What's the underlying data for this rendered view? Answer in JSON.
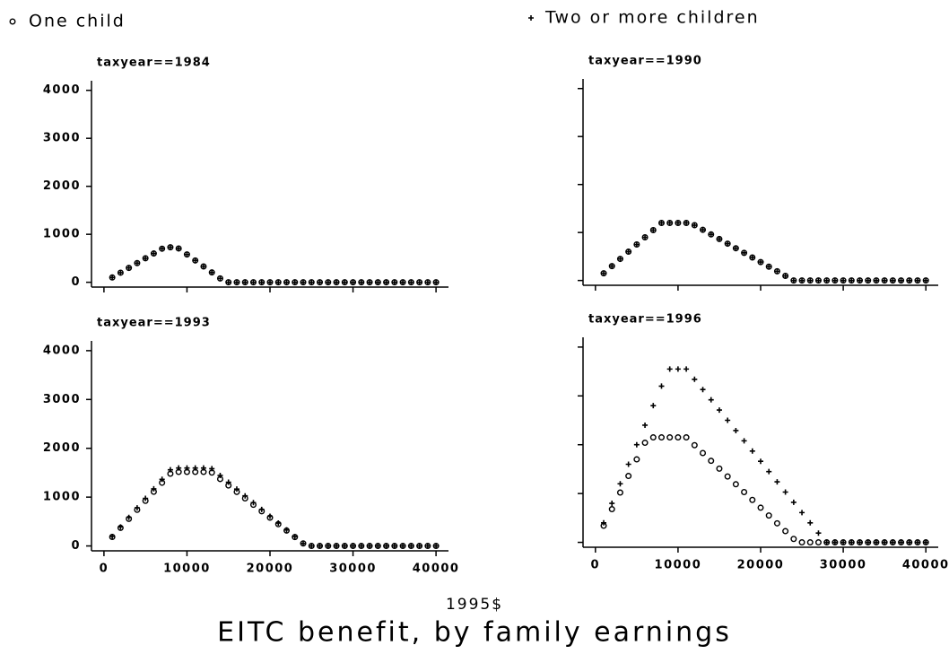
{
  "title": "EITC benefit, by family earnings",
  "xlabel": "1995$",
  "chart_data": [
    {
      "type": "scatter",
      "title": "taxyear==1984",
      "x": [
        1000,
        2000,
        3000,
        4000,
        5000,
        6000,
        7000,
        8000,
        9000,
        10000,
        11000,
        12000,
        13000,
        14000,
        15000,
        16000,
        17000,
        18000,
        19000,
        20000,
        21000,
        22000,
        23000,
        24000,
        25000,
        26000,
        27000,
        28000,
        29000,
        30000,
        31000,
        32000,
        33000,
        34000,
        35000,
        36000,
        37000,
        38000,
        39000,
        40000
      ],
      "series": [
        {
          "name": "One child",
          "marker": "circle",
          "color": "#000000",
          "values": [
            100,
            200,
            300,
            400,
            500,
            600,
            700,
            730,
            705,
            580,
            455,
            330,
            205,
            80,
            0,
            0,
            0,
            0,
            0,
            0,
            0,
            0,
            0,
            0,
            0,
            0,
            0,
            0,
            0,
            0,
            0,
            0,
            0,
            0,
            0,
            0,
            0,
            0,
            0,
            0
          ]
        },
        {
          "name": "Two or more children",
          "marker": "plus",
          "color": "#000000",
          "values": [
            100,
            200,
            300,
            400,
            500,
            600,
            700,
            730,
            705,
            580,
            455,
            330,
            205,
            80,
            0,
            0,
            0,
            0,
            0,
            0,
            0,
            0,
            0,
            0,
            0,
            0,
            0,
            0,
            0,
            0,
            0,
            0,
            0,
            0,
            0,
            0,
            0,
            0,
            0,
            0
          ]
        }
      ],
      "xlim": [
        -1500,
        41500
      ],
      "ylim": [
        -100,
        4200
      ],
      "xticks": [
        0,
        10000,
        20000,
        30000,
        40000
      ],
      "yticks": [
        0,
        1000,
        2000,
        3000,
        4000
      ]
    },
    {
      "type": "scatter",
      "title": "taxyear==1990",
      "x": [
        1000,
        2000,
        3000,
        4000,
        5000,
        6000,
        7000,
        8000,
        9000,
        10000,
        11000,
        12000,
        13000,
        14000,
        15000,
        16000,
        17000,
        18000,
        19000,
        20000,
        21000,
        22000,
        23000,
        24000,
        25000,
        26000,
        27000,
        28000,
        29000,
        30000,
        31000,
        32000,
        33000,
        34000,
        35000,
        36000,
        37000,
        38000,
        39000,
        40000
      ],
      "series": [
        {
          "name": "One child",
          "marker": "circle",
          "color": "#000000",
          "values": [
            150,
            300,
            450,
            600,
            750,
            900,
            1050,
            1200,
            1200,
            1200,
            1200,
            1152,
            1056,
            960,
            864,
            768,
            672,
            576,
            480,
            384,
            288,
            192,
            96,
            0,
            0,
            0,
            0,
            0,
            0,
            0,
            0,
            0,
            0,
            0,
            0,
            0,
            0,
            0,
            0,
            0
          ]
        },
        {
          "name": "Two or more children",
          "marker": "plus",
          "color": "#000000",
          "values": [
            150,
            300,
            450,
            600,
            750,
            900,
            1050,
            1200,
            1200,
            1200,
            1200,
            1152,
            1056,
            960,
            864,
            768,
            672,
            576,
            480,
            384,
            288,
            192,
            96,
            0,
            0,
            0,
            0,
            0,
            0,
            0,
            0,
            0,
            0,
            0,
            0,
            0,
            0,
            0,
            0,
            0
          ]
        }
      ],
      "xlim": [
        -1500,
        41500
      ],
      "ylim": [
        -100,
        4200
      ],
      "xticks": [
        0,
        10000,
        20000,
        30000,
        40000
      ],
      "yticks": [
        0,
        1000,
        2000,
        3000,
        4000
      ]
    },
    {
      "type": "scatter",
      "title": "taxyear==1993",
      "x": [
        1000,
        2000,
        3000,
        4000,
        5000,
        6000,
        7000,
        8000,
        9000,
        10000,
        11000,
        12000,
        13000,
        14000,
        15000,
        16000,
        17000,
        18000,
        19000,
        20000,
        21000,
        22000,
        23000,
        24000,
        25000,
        26000,
        27000,
        28000,
        29000,
        30000,
        31000,
        32000,
        33000,
        34000,
        35000,
        36000,
        37000,
        38000,
        39000,
        40000
      ],
      "series": [
        {
          "name": "One child",
          "marker": "circle",
          "color": "#000000",
          "values": [
            185,
            370,
            555,
            740,
            925,
            1110,
            1295,
            1480,
            1516,
            1516,
            1516,
            1516,
            1503,
            1371,
            1239,
            1107,
            975,
            843,
            711,
            579,
            447,
            315,
            183,
            51,
            0,
            0,
            0,
            0,
            0,
            0,
            0,
            0,
            0,
            0,
            0,
            0,
            0,
            0,
            0,
            0
          ]
        },
        {
          "name": "Two or more children",
          "marker": "plus",
          "color": "#000000",
          "values": [
            195,
            390,
            585,
            780,
            975,
            1170,
            1365,
            1560,
            1597,
            1597,
            1597,
            1597,
            1583,
            1444,
            1305,
            1165,
            1026,
            887,
            747,
            608,
            469,
            329,
            190,
            51,
            0,
            0,
            0,
            0,
            0,
            0,
            0,
            0,
            0,
            0,
            0,
            0,
            0,
            0,
            0,
            0
          ]
        }
      ],
      "xlim": [
        -1500,
        41500
      ],
      "ylim": [
        -100,
        4200
      ],
      "xticks": [
        0,
        10000,
        20000,
        30000,
        40000
      ],
      "yticks": [
        0,
        1000,
        2000,
        3000,
        4000
      ]
    },
    {
      "type": "scatter",
      "title": "taxyear==1996",
      "x": [
        1000,
        2000,
        3000,
        4000,
        5000,
        6000,
        7000,
        8000,
        9000,
        10000,
        11000,
        12000,
        13000,
        14000,
        15000,
        16000,
        17000,
        18000,
        19000,
        20000,
        21000,
        22000,
        23000,
        24000,
        25000,
        26000,
        27000,
        28000,
        29000,
        30000,
        31000,
        32000,
        33000,
        34000,
        35000,
        36000,
        37000,
        38000,
        39000,
        40000
      ],
      "series": [
        {
          "name": "One child",
          "marker": "circle",
          "color": "#000000",
          "values": [
            340,
            680,
            1020,
            1360,
            1700,
            2040,
            2150,
            2150,
            2150,
            2150,
            2150,
            1990,
            1830,
            1670,
            1510,
            1350,
            1190,
            1030,
            870,
            710,
            550,
            390,
            230,
            70,
            0,
            0,
            0,
            0,
            0,
            0,
            0,
            0,
            0,
            0,
            0,
            0,
            0,
            0,
            0,
            0
          ]
        },
        {
          "name": "Two or more children",
          "marker": "plus",
          "color": "#000000",
          "values": [
            400,
            800,
            1200,
            1600,
            2000,
            2400,
            2800,
            3200,
            3550,
            3550,
            3550,
            3340,
            3130,
            2920,
            2710,
            2500,
            2290,
            2080,
            1870,
            1660,
            1450,
            1240,
            1030,
            820,
            610,
            400,
            190,
            0,
            0,
            0,
            0,
            0,
            0,
            0,
            0,
            0,
            0,
            0,
            0,
            0
          ]
        }
      ],
      "xlim": [
        -1500,
        41500
      ],
      "ylim": [
        -100,
        4200
      ],
      "xticks": [
        0,
        10000,
        20000,
        30000,
        40000
      ],
      "yticks": [
        0,
        1000,
        2000,
        3000,
        4000
      ]
    }
  ]
}
